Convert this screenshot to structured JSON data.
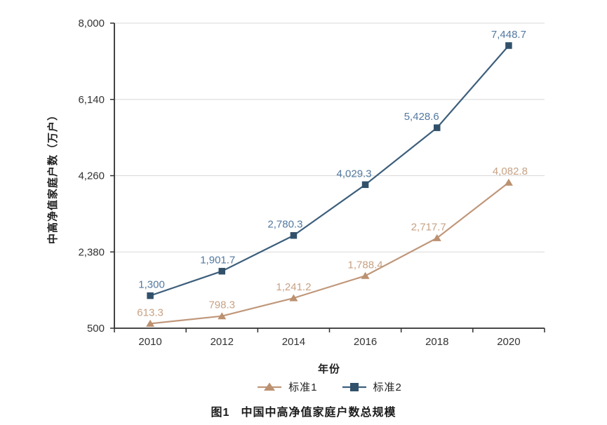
{
  "figure": {
    "caption_prefix": "图1",
    "caption_text": "中国中高净值家庭户数总规模"
  },
  "chart_data": {
    "type": "line",
    "title": "图1 中国中高净值家庭户数总规模",
    "xlabel": "年份",
    "ylabel": "中高净值家庭户数（万户）",
    "categories": [
      "2010",
      "2012",
      "2014",
      "2016",
      "2018",
      "2020"
    ],
    "y_ticks": [
      "500",
      "2,380",
      "4,260",
      "6,140",
      "8,000"
    ],
    "ylim": [
      500,
      8000
    ],
    "grid": "horizontal",
    "legend_position": "bottom",
    "colors": {
      "axis": "#2f2f2f",
      "gridline": "#d9d9d9",
      "tick_text": "#333333"
    },
    "series": [
      {
        "name": "标准1",
        "marker": "triangle",
        "color": "#C0977A",
        "marker_color": "#BB9170",
        "label_color": "#C7A183",
        "values": [
          613.3,
          798.3,
          1241.2,
          1788.4,
          2717.7,
          4082.8
        ],
        "labels": [
          "613.3",
          "798.3",
          "1,241.2",
          "1,788.4",
          "2,717.7",
          "4,082.8"
        ],
        "label_dx": [
          0,
          0,
          0,
          0,
          -12,
          2
        ]
      },
      {
        "name": "标准2",
        "marker": "square",
        "color": "#3D5F7C",
        "marker_color": "#31516B",
        "label_color": "#5379A0",
        "values": [
          1300,
          1901.7,
          2780.3,
          4029.3,
          5428.6,
          7448.7
        ],
        "labels": [
          "1,300",
          "1,901.7",
          "2,780.3",
          "4,029.3",
          "5,428.6",
          "7,448.7"
        ],
        "label_dx": [
          2,
          -6,
          -12,
          -16,
          -22,
          0
        ]
      }
    ]
  }
}
